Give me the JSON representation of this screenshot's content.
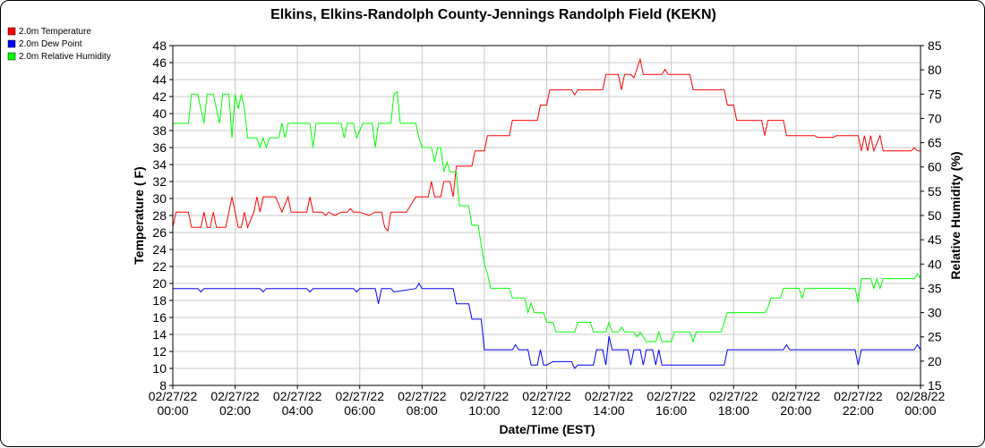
{
  "chart_data": {
    "type": "line",
    "title": "Elkins, Elkins-Randolph County-Jennings Randolph Field (KEKN)",
    "xlabel": "Date/Time (EST)",
    "ylabel_left": "Temperature ( F)",
    "ylabel_right": "Relative Humidity (%)",
    "ylim_left": [
      8,
      48
    ],
    "ylim_right": [
      15,
      85
    ],
    "xlim_hours": [
      0,
      24
    ],
    "grid": true,
    "legend_position": "top-left",
    "x_ticks": [
      {
        "hour": 0,
        "date": "02/27/22",
        "time": "00:00"
      },
      {
        "hour": 2,
        "date": "02/27/22",
        "time": "02:00"
      },
      {
        "hour": 4,
        "date": "02/27/22",
        "time": "04:00"
      },
      {
        "hour": 6,
        "date": "02/27/22",
        "time": "06:00"
      },
      {
        "hour": 8,
        "date": "02/27/22",
        "time": "08:00"
      },
      {
        "hour": 10,
        "date": "02/27/22",
        "time": "10:00"
      },
      {
        "hour": 12,
        "date": "02/27/22",
        "time": "12:00"
      },
      {
        "hour": 14,
        "date": "02/27/22",
        "time": "14:00"
      },
      {
        "hour": 16,
        "date": "02/27/22",
        "time": "16:00"
      },
      {
        "hour": 18,
        "date": "02/27/22",
        "time": "18:00"
      },
      {
        "hour": 20,
        "date": "02/27/22",
        "time": "20:00"
      },
      {
        "hour": 22,
        "date": "02/27/22",
        "time": "22:00"
      },
      {
        "hour": 24,
        "date": "02/28/22",
        "time": "00:00"
      }
    ],
    "y_ticks_left": [
      8,
      10,
      12,
      14,
      16,
      18,
      20,
      22,
      24,
      26,
      28,
      30,
      32,
      34,
      36,
      38,
      40,
      42,
      44,
      46,
      48
    ],
    "y_ticks_right": [
      15,
      20,
      25,
      30,
      35,
      40,
      45,
      50,
      55,
      60,
      65,
      70,
      75,
      80,
      85
    ],
    "series": [
      {
        "name": "2.0m Temperature",
        "color": "#ff0000",
        "axis": "left",
        "points": [
          [
            0,
            26.6
          ],
          [
            0.1,
            28.4
          ],
          [
            0.5,
            28.4
          ],
          [
            0.6,
            26.6
          ],
          [
            0.9,
            26.6
          ],
          [
            1.0,
            28.4
          ],
          [
            1.1,
            26.6
          ],
          [
            1.2,
            26.6
          ],
          [
            1.3,
            28.4
          ],
          [
            1.4,
            26.6
          ],
          [
            1.7,
            26.6
          ],
          [
            1.8,
            28.4
          ],
          [
            1.9,
            30.2
          ],
          [
            2.0,
            28.4
          ],
          [
            2.1,
            26.6
          ],
          [
            2.2,
            26.6
          ],
          [
            2.3,
            28.4
          ],
          [
            2.4,
            26.6
          ],
          [
            2.6,
            28.4
          ],
          [
            2.7,
            30.2
          ],
          [
            2.8,
            28.4
          ],
          [
            2.9,
            30.2
          ],
          [
            3.0,
            30.2
          ],
          [
            3.3,
            30.2
          ],
          [
            3.5,
            28.4
          ],
          [
            3.7,
            30.2
          ],
          [
            3.8,
            28.4
          ],
          [
            4.3,
            28.4
          ],
          [
            4.4,
            30.2
          ],
          [
            4.5,
            28.4
          ],
          [
            4.8,
            28.4
          ],
          [
            4.9,
            28.0
          ],
          [
            5.0,
            28.4
          ],
          [
            5.2,
            28.0
          ],
          [
            5.4,
            28.4
          ],
          [
            5.6,
            28.4
          ],
          [
            5.7,
            28.8
          ],
          [
            5.8,
            28.4
          ],
          [
            6.0,
            28.4
          ],
          [
            6.3,
            28.0
          ],
          [
            6.5,
            28.4
          ],
          [
            6.7,
            28.4
          ],
          [
            6.8,
            26.6
          ],
          [
            6.9,
            26.2
          ],
          [
            7.0,
            28.4
          ],
          [
            7.5,
            28.4
          ],
          [
            7.8,
            30.2
          ],
          [
            8.2,
            30.2
          ],
          [
            8.3,
            32.0
          ],
          [
            8.4,
            30.2
          ],
          [
            8.6,
            30.2
          ],
          [
            8.7,
            32.0
          ],
          [
            8.9,
            32.0
          ],
          [
            9.0,
            30.2
          ],
          [
            9.1,
            33.8
          ],
          [
            9.6,
            33.8
          ],
          [
            9.7,
            35.6
          ],
          [
            10.0,
            35.6
          ],
          [
            10.1,
            37.4
          ],
          [
            10.8,
            37.4
          ],
          [
            10.9,
            39.2
          ],
          [
            11.7,
            39.2
          ],
          [
            11.8,
            41.0
          ],
          [
            12.0,
            41.0
          ],
          [
            12.1,
            42.8
          ],
          [
            12.8,
            42.8
          ],
          [
            12.9,
            42.2
          ],
          [
            13.0,
            42.8
          ],
          [
            13.8,
            42.8
          ],
          [
            13.9,
            44.6
          ],
          [
            14.3,
            44.6
          ],
          [
            14.4,
            42.8
          ],
          [
            14.5,
            44.6
          ],
          [
            14.7,
            44.6
          ],
          [
            14.8,
            44.2
          ],
          [
            15.0,
            46.4
          ],
          [
            15.1,
            44.6
          ],
          [
            15.7,
            44.6
          ],
          [
            15.8,
            45.2
          ],
          [
            15.9,
            44.6
          ],
          [
            16.6,
            44.6
          ],
          [
            16.7,
            42.8
          ],
          [
            17.7,
            42.8
          ],
          [
            17.8,
            41.0
          ],
          [
            18.0,
            41.0
          ],
          [
            18.1,
            39.2
          ],
          [
            18.9,
            39.2
          ],
          [
            19.0,
            37.4
          ],
          [
            19.1,
            39.2
          ],
          [
            19.6,
            39.2
          ],
          [
            19.7,
            37.4
          ],
          [
            20.6,
            37.4
          ],
          [
            20.7,
            37.2
          ],
          [
            21.2,
            37.2
          ],
          [
            21.3,
            37.4
          ],
          [
            22.0,
            37.4
          ],
          [
            22.1,
            35.6
          ],
          [
            22.2,
            37.4
          ],
          [
            22.3,
            35.6
          ],
          [
            22.4,
            37.4
          ],
          [
            22.5,
            35.6
          ],
          [
            22.7,
            37.4
          ],
          [
            22.8,
            35.6
          ],
          [
            23.7,
            35.6
          ],
          [
            23.8,
            36.0
          ],
          [
            23.9,
            35.6
          ],
          [
            24.0,
            35.6
          ]
        ]
      },
      {
        "name": "2.0m Dew Point",
        "color": "#0000ff",
        "axis": "left",
        "points": [
          [
            0,
            19.4
          ],
          [
            0.8,
            19.4
          ],
          [
            0.9,
            19.0
          ],
          [
            1.0,
            19.4
          ],
          [
            2.8,
            19.4
          ],
          [
            2.9,
            19.0
          ],
          [
            3.0,
            19.4
          ],
          [
            4.3,
            19.4
          ],
          [
            4.4,
            19.0
          ],
          [
            4.5,
            19.4
          ],
          [
            5.8,
            19.4
          ],
          [
            5.9,
            19.0
          ],
          [
            6.0,
            19.4
          ],
          [
            6.5,
            19.4
          ],
          [
            6.6,
            17.6
          ],
          [
            6.7,
            19.4
          ],
          [
            7.0,
            19.4
          ],
          [
            7.1,
            19.0
          ],
          [
            7.8,
            19.4
          ],
          [
            7.9,
            20.0
          ],
          [
            8.0,
            19.4
          ],
          [
            9.0,
            19.4
          ],
          [
            9.1,
            17.6
          ],
          [
            9.5,
            17.6
          ],
          [
            9.6,
            15.8
          ],
          [
            9.9,
            15.8
          ],
          [
            10.0,
            12.2
          ],
          [
            10.9,
            12.2
          ],
          [
            11.0,
            12.8
          ],
          [
            11.1,
            12.2
          ],
          [
            11.4,
            12.2
          ],
          [
            11.5,
            10.4
          ],
          [
            11.7,
            10.4
          ],
          [
            11.8,
            12.2
          ],
          [
            11.9,
            10.4
          ],
          [
            12.0,
            10.4
          ],
          [
            12.2,
            10.8
          ],
          [
            12.8,
            10.8
          ],
          [
            12.9,
            10.0
          ],
          [
            13.0,
            10.4
          ],
          [
            13.5,
            10.4
          ],
          [
            13.6,
            12.2
          ],
          [
            13.8,
            12.2
          ],
          [
            13.9,
            10.4
          ],
          [
            14.0,
            13.8
          ],
          [
            14.1,
            12.2
          ],
          [
            14.6,
            12.2
          ],
          [
            14.7,
            10.4
          ],
          [
            14.8,
            12.2
          ],
          [
            15.0,
            12.2
          ],
          [
            15.1,
            10.4
          ],
          [
            15.2,
            12.2
          ],
          [
            15.4,
            12.2
          ],
          [
            15.5,
            10.4
          ],
          [
            15.6,
            12.2
          ],
          [
            15.7,
            10.4
          ],
          [
            17.7,
            10.4
          ],
          [
            17.8,
            12.2
          ],
          [
            19.6,
            12.2
          ],
          [
            19.7,
            12.8
          ],
          [
            19.8,
            12.2
          ],
          [
            21.9,
            12.2
          ],
          [
            22.0,
            10.4
          ],
          [
            22.1,
            12.2
          ],
          [
            23.8,
            12.2
          ],
          [
            23.9,
            12.8
          ],
          [
            24.0,
            12.2
          ]
        ]
      },
      {
        "name": "2.0m Relative Humidity",
        "color": "#00ff00",
        "axis": "right",
        "points": [
          [
            0,
            69
          ],
          [
            0.5,
            69
          ],
          [
            0.6,
            75
          ],
          [
            0.8,
            75
          ],
          [
            0.9,
            72
          ],
          [
            1.0,
            69
          ],
          [
            1.1,
            75
          ],
          [
            1.3,
            75
          ],
          [
            1.4,
            72
          ],
          [
            1.5,
            69
          ],
          [
            1.6,
            75
          ],
          [
            1.8,
            75
          ],
          [
            1.9,
            66
          ],
          [
            2.0,
            75
          ],
          [
            2.1,
            72
          ],
          [
            2.2,
            75
          ],
          [
            2.3,
            72
          ],
          [
            2.4,
            66
          ],
          [
            2.7,
            66
          ],
          [
            2.8,
            64
          ],
          [
            2.9,
            66
          ],
          [
            3.0,
            64
          ],
          [
            3.1,
            66
          ],
          [
            3.4,
            66
          ],
          [
            3.5,
            69
          ],
          [
            3.6,
            66
          ],
          [
            3.7,
            69
          ],
          [
            4.4,
            69
          ],
          [
            4.5,
            64
          ],
          [
            4.6,
            69
          ],
          [
            5.4,
            69
          ],
          [
            5.5,
            66
          ],
          [
            5.6,
            69
          ],
          [
            5.8,
            69
          ],
          [
            5.9,
            66
          ],
          [
            6.1,
            69
          ],
          [
            6.4,
            69
          ],
          [
            6.5,
            64
          ],
          [
            6.6,
            69
          ],
          [
            7.0,
            69
          ],
          [
            7.1,
            75
          ],
          [
            7.2,
            75.5
          ],
          [
            7.3,
            69
          ],
          [
            7.8,
            69
          ],
          [
            7.9,
            66
          ],
          [
            8.0,
            64
          ],
          [
            8.3,
            64
          ],
          [
            8.4,
            61
          ],
          [
            8.5,
            64
          ],
          [
            8.6,
            64
          ],
          [
            8.7,
            59
          ],
          [
            8.8,
            61
          ],
          [
            8.9,
            59
          ],
          [
            9.0,
            59
          ],
          [
            9.1,
            59
          ],
          [
            9.2,
            52
          ],
          [
            9.5,
            52
          ],
          [
            9.6,
            48
          ],
          [
            9.8,
            48
          ],
          [
            9.9,
            44
          ],
          [
            10.0,
            40
          ],
          [
            10.1,
            38
          ],
          [
            10.2,
            35
          ],
          [
            10.8,
            35
          ],
          [
            10.9,
            33
          ],
          [
            11.3,
            33
          ],
          [
            11.4,
            30
          ],
          [
            11.5,
            32
          ],
          [
            11.6,
            30
          ],
          [
            11.9,
            30
          ],
          [
            12.0,
            28
          ],
          [
            12.2,
            28
          ],
          [
            12.3,
            26
          ],
          [
            12.9,
            26
          ],
          [
            13.0,
            28
          ],
          [
            13.4,
            28
          ],
          [
            13.5,
            26
          ],
          [
            13.9,
            26
          ],
          [
            14.0,
            28
          ],
          [
            14.1,
            26
          ],
          [
            14.3,
            26
          ],
          [
            14.4,
            27
          ],
          [
            14.5,
            26
          ],
          [
            14.8,
            26
          ],
          [
            14.9,
            25
          ],
          [
            15.0,
            26
          ],
          [
            15.2,
            24
          ],
          [
            15.5,
            24
          ],
          [
            15.6,
            26
          ],
          [
            15.7,
            24
          ],
          [
            16.0,
            24
          ],
          [
            16.1,
            26
          ],
          [
            16.6,
            26
          ],
          [
            16.7,
            24
          ],
          [
            16.8,
            26
          ],
          [
            17.6,
            26
          ],
          [
            17.7,
            28
          ],
          [
            17.8,
            30
          ],
          [
            19.0,
            30
          ],
          [
            19.1,
            31
          ],
          [
            19.2,
            33
          ],
          [
            19.5,
            33
          ],
          [
            19.6,
            35
          ],
          [
            20.1,
            35
          ],
          [
            20.2,
            33
          ],
          [
            20.3,
            35
          ],
          [
            21.9,
            35
          ],
          [
            22.0,
            32
          ],
          [
            22.1,
            37
          ],
          [
            22.4,
            37
          ],
          [
            22.5,
            35
          ],
          [
            22.6,
            37
          ],
          [
            22.7,
            35
          ],
          [
            22.8,
            37
          ],
          [
            23.8,
            37
          ],
          [
            23.9,
            38
          ],
          [
            24.0,
            37
          ]
        ]
      }
    ]
  }
}
